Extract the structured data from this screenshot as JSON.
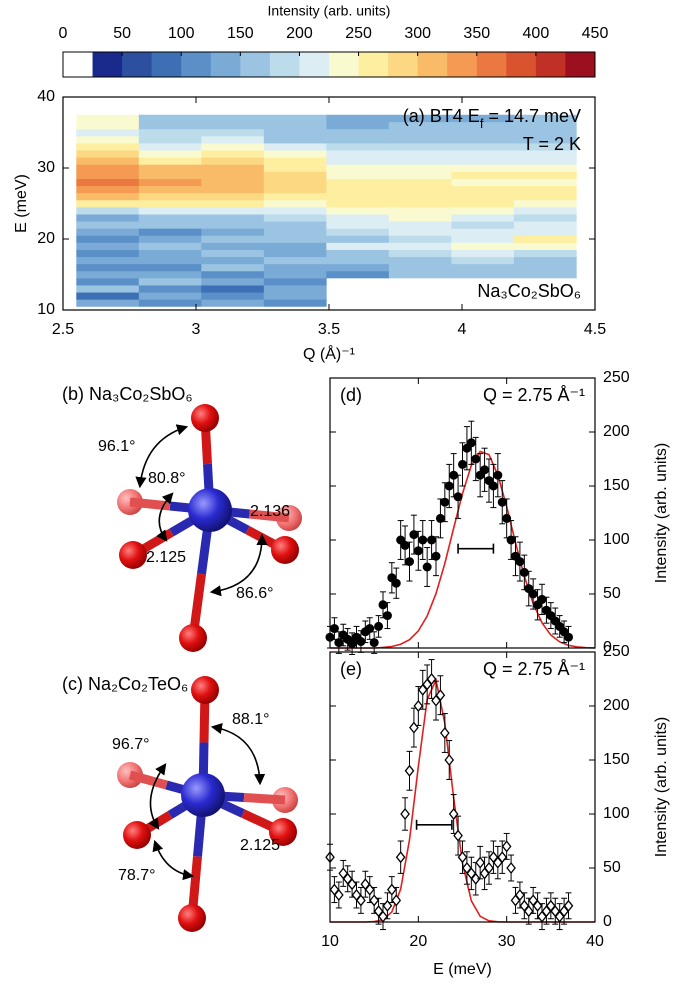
{
  "chart_data": [
    {
      "type": "heatmap",
      "title_parts": [
        "(a) BT4 E",
        "f",
        " = 14.7 meV"
      ],
      "annotations": [
        "T = 2 K",
        "Na₃Co₂SbO₆"
      ],
      "xlabel": "Q (Å)⁻¹",
      "ylabel": "E (meV)",
      "xlim": [
        2.5,
        4.5
      ],
      "ylim": [
        10,
        40
      ],
      "xticks": [
        2.5,
        3,
        3.5,
        4,
        4.5
      ],
      "yticks": [
        10,
        20,
        30,
        40
      ],
      "xbins": [
        2.55,
        2.785,
        3.02,
        3.255,
        3.49,
        3.725,
        3.96,
        4.195,
        4.43
      ],
      "ybins": [
        10.5,
        11.5,
        12.5,
        13.5,
        14.5,
        15.5,
        16.5,
        17.5,
        18.5,
        19.5,
        20.5,
        21.5,
        22.5,
        23.5,
        24.5,
        25.5,
        26.5,
        27.5,
        28.5,
        29.5,
        30.5,
        31.5,
        32.5,
        33.5,
        34.5,
        35.5,
        36.5,
        37.5
      ],
      "values": [
        [
          130,
          90,
          150,
          110,
          140,
          100,
          130,
          120,
          140,
          110,
          130,
          150,
          140,
          180,
          260,
          300,
          330,
          360,
          340,
          330,
          300,
          280,
          250,
          230,
          220,
          240,
          230
        ],
        [
          110,
          140,
          120,
          150,
          130,
          120,
          140,
          130,
          150,
          140,
          120,
          160,
          150,
          200,
          260,
          290,
          310,
          330,
          320,
          300,
          270,
          240,
          220,
          190,
          180,
          170,
          160
        ],
        [
          140,
          120,
          90,
          130,
          110,
          150,
          140,
          160,
          130,
          150,
          140,
          170,
          160,
          220,
          250,
          280,
          300,
          310,
          300,
          320,
          290,
          260,
          230,
          200,
          180,
          170,
          150
        ],
        [
          120,
          130,
          140,
          120,
          130,
          140,
          150,
          130,
          140,
          160,
          150,
          170,
          180,
          210,
          240,
          260,
          280,
          290,
          280,
          270,
          260,
          240,
          200,
          170,
          160,
          150,
          150
        ],
        [
          null,
          null,
          null,
          null,
          120,
          140,
          160,
          170,
          200,
          170,
          190,
          200,
          210,
          230,
          250,
          260,
          270,
          250,
          240,
          230,
          220,
          200,
          180,
          160,
          150,
          140,
          130
        ],
        [
          null,
          null,
          null,
          null,
          150,
          160,
          170,
          190,
          220,
          190,
          210,
          220,
          230,
          240,
          250,
          260,
          250,
          260,
          240,
          230,
          220,
          200,
          190,
          170,
          160,
          150,
          140
        ],
        [
          null,
          null,
          null,
          null,
          160,
          170,
          180,
          200,
          230,
          210,
          200,
          190,
          210,
          230,
          250,
          260,
          250,
          240,
          260,
          240,
          220,
          200,
          180,
          170,
          160,
          150,
          140
        ],
        [
          null,
          null,
          null,
          null,
          150,
          160,
          170,
          190,
          240,
          250,
          220,
          200,
          190,
          200,
          230,
          250,
          260,
          240,
          250,
          230,
          220,
          200,
          180,
          170,
          160,
          160,
          150
        ]
      ],
      "colorbar": {
        "label": "Intensity (arb. units)",
        "clim": [
          0,
          450
        ],
        "ticks": [
          0,
          50,
          100,
          150,
          200,
          250,
          300,
          350,
          400,
          450
        ],
        "colors": [
          "#ffffff",
          "#1a2a8c",
          "#2c4fa0",
          "#3d6fb5",
          "#5a8fc8",
          "#7aaad6",
          "#9bc4e2",
          "#bcdcec",
          "#dceef3",
          "#fafad0",
          "#fdeea0",
          "#fcd882",
          "#f9bb68",
          "#f49a52",
          "#ea7840",
          "#d9532f",
          "#c03025",
          "#9b0f1e"
        ]
      }
    },
    {
      "type": "scatter",
      "panel": "(d)",
      "annotation": "Q = 2.75 Å⁻¹",
      "ylabel": "Intensity (arb. units)",
      "yaxis_side": "right",
      "show_xtick_labels": false,
      "xlim": [
        10,
        40
      ],
      "ylim": [
        0,
        250
      ],
      "xticks": [
        10,
        20,
        30,
        40
      ],
      "yticks": [
        0,
        50,
        100,
        150,
        200,
        250
      ],
      "marker": "circle",
      "color": "#000000",
      "x": [
        10,
        10.5,
        11,
        11.5,
        12,
        12.5,
        13,
        13.5,
        14,
        14.5,
        15,
        15.5,
        16,
        16.5,
        17,
        17.5,
        18,
        18.5,
        19,
        19.5,
        20,
        20.5,
        21,
        21.5,
        22,
        22.5,
        23,
        23.5,
        24,
        24.5,
        25,
        25.5,
        26,
        26.5,
        27,
        27.5,
        28,
        28.5,
        29,
        29.5,
        30,
        30.5,
        31,
        31.5,
        32,
        32.5,
        33,
        33.5,
        34,
        34.5,
        35,
        35.5,
        36,
        36.5,
        37
      ],
      "values": [
        10,
        18,
        5,
        12,
        8,
        4,
        10,
        6,
        15,
        18,
        5,
        20,
        40,
        30,
        65,
        60,
        100,
        95,
        80,
        105,
        90,
        100,
        75,
        100,
        85,
        120,
        135,
        150,
        160,
        140,
        170,
        185,
        190,
        175,
        160,
        165,
        155,
        150,
        160,
        135,
        120,
        100,
        85,
        80,
        70,
        55,
        50,
        40,
        45,
        35,
        30,
        25,
        20,
        15,
        10
      ],
      "errors": [
        10,
        10,
        10,
        10,
        10,
        10,
        10,
        10,
        10,
        10,
        10,
        10,
        12,
        12,
        14,
        14,
        18,
        18,
        18,
        18,
        18,
        18,
        18,
        18,
        18,
        18,
        18,
        20,
        20,
        20,
        20,
        20,
        20,
        20,
        20,
        20,
        20,
        20,
        20,
        20,
        18,
        18,
        18,
        18,
        16,
        16,
        14,
        14,
        14,
        12,
        12,
        12,
        10,
        10,
        10
      ],
      "fit": {
        "color": "#e02020",
        "x": [
          10,
          11,
          12,
          13,
          14,
          15,
          16,
          17,
          18,
          19,
          20,
          21,
          22,
          23,
          24,
          25,
          26,
          27,
          28,
          29,
          30,
          31,
          32,
          33,
          34,
          35,
          36,
          37,
          38,
          39,
          40
        ],
        "values": [
          0,
          0,
          0,
          0,
          0,
          0,
          0.5,
          1.4,
          3.5,
          7.7,
          15.8,
          29.6,
          50.4,
          78.3,
          111,
          143,
          169,
          182,
          179,
          160,
          131,
          97.5,
          66.4,
          41.2,
          23.3,
          12,
          5.7,
          2.4,
          1,
          0.3,
          0.1
        ]
      },
      "resolution": {
        "x": [
          24.5,
          28.5
        ],
        "y": 92
      }
    },
    {
      "type": "scatter",
      "panel": "(e)",
      "annotation": "Q = 2.75 Å⁻¹",
      "xlabel": "E (meV)",
      "ylabel": "Intensity (arb. units)",
      "yaxis_side": "right",
      "show_xtick_labels": true,
      "xlim": [
        10,
        40
      ],
      "ylim": [
        0,
        250
      ],
      "xticks": [
        10,
        20,
        30,
        40
      ],
      "yticks": [
        0,
        50,
        100,
        150,
        200,
        250
      ],
      "marker": "diamond",
      "color": "#000000",
      "x": [
        10,
        10.5,
        11,
        11.5,
        12,
        12.5,
        13,
        13.5,
        14,
        14.5,
        15,
        15.5,
        16,
        16.5,
        17,
        17.5,
        18,
        18.5,
        19,
        19.5,
        20,
        20.5,
        21,
        21.5,
        22,
        22.5,
        23,
        23.5,
        24,
        24.5,
        25,
        25.5,
        26,
        26.5,
        27,
        27.5,
        28,
        28.5,
        29,
        29.5,
        30,
        30.5,
        31,
        31.5,
        32,
        32.5,
        33,
        33.5,
        34,
        34.5,
        35,
        35.5,
        36,
        36.5,
        37
      ],
      "values": [
        60,
        30,
        25,
        45,
        40,
        35,
        25,
        20,
        35,
        30,
        20,
        10,
        5,
        15,
        30,
        20,
        60,
        100,
        140,
        180,
        200,
        215,
        220,
        225,
        205,
        210,
        175,
        150,
        100,
        80,
        60,
        50,
        45,
        40,
        55,
        45,
        50,
        60,
        55,
        60,
        70,
        50,
        20,
        25,
        15,
        10,
        20,
        15,
        5,
        10,
        15,
        10,
        5,
        10,
        15
      ],
      "errors": [
        12,
        12,
        12,
        12,
        12,
        12,
        12,
        12,
        12,
        12,
        12,
        12,
        12,
        12,
        12,
        12,
        15,
        15,
        18,
        18,
        18,
        18,
        18,
        18,
        18,
        18,
        18,
        18,
        18,
        18,
        15,
        15,
        15,
        15,
        15,
        15,
        15,
        15,
        15,
        15,
        12,
        12,
        12,
        12,
        12,
        12,
        12,
        12,
        12,
        12,
        12,
        12,
        12,
        12,
        12
      ],
      "fit": {
        "color": "#e02020",
        "x": [
          10,
          11,
          12,
          13,
          14,
          15,
          16,
          17,
          18,
          19,
          20,
          21,
          22,
          23,
          24,
          25,
          26,
          27,
          28,
          29,
          30,
          31,
          32,
          33,
          34,
          35,
          36,
          37,
          38,
          39,
          40
        ],
        "values": [
          0,
          0,
          0,
          0,
          0,
          0.4,
          2.1,
          9.3,
          30.4,
          76,
          144,
          206,
          224,
          184,
          115,
          54.5,
          19.6,
          5.3,
          1.1,
          0.2,
          0,
          0,
          0,
          0,
          0,
          0,
          0,
          0,
          0,
          0,
          0
        ]
      },
      "resolution": {
        "x": [
          19.8,
          23.8
        ],
        "y": 90
      }
    }
  ],
  "diagrams": [
    {
      "label": "(b) Na₃Co₂SbO₆",
      "annotations": [
        "96.1°",
        "80.8°",
        "2.136",
        "2.125",
        "86.6°"
      ]
    },
    {
      "label": "(c) Na₂Co₂TeO₆",
      "annotations": [
        "96.7°",
        "88.1°",
        "2.125",
        "78.7°"
      ]
    }
  ]
}
